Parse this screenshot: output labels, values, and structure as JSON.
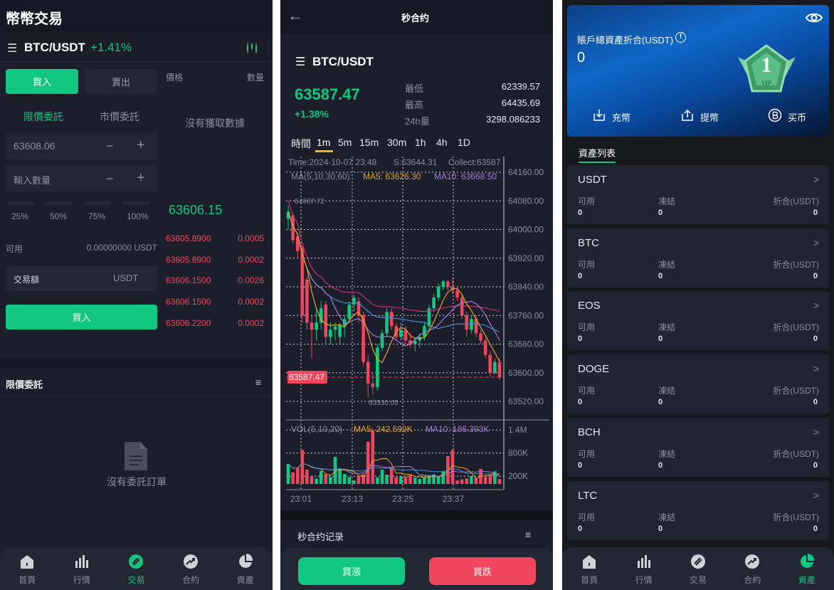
{
  "colors": {
    "green": "#12c77f",
    "red": "#f0465d",
    "bg": "#1c1f2b",
    "ma5": "#e5a323",
    "ma10": "#a77ad8",
    "ma30": "#3d8fd6",
    "ma60": "#c2336f"
  },
  "spot": {
    "title": "幣幣交易",
    "pair": "BTC/USDT",
    "change": "+1.41%",
    "buy_tab": "買入",
    "sell_tab": "賣出",
    "limit_tab": "限價委託",
    "market_tab": "市價委託",
    "price_value": "63608.06",
    "qty_placeholder": "輸入數量",
    "minus": "−",
    "plus": "+",
    "percents": [
      "25%",
      "50%",
      "75%",
      "100%"
    ],
    "available_label": "可用",
    "available_value": "0.00000000 USDT",
    "amount_label": "交易額",
    "amount_unit": "USDT",
    "buy_button": "買入",
    "book_price_header": "價格",
    "book_qty_header": "數量",
    "no_data": "沒有獲取數據",
    "last_price": "63606.15",
    "book": [
      {
        "price": "63605.8900",
        "qty": "0.0005"
      },
      {
        "price": "63605.8900",
        "qty": "0.0002"
      },
      {
        "price": "63606.1500",
        "qty": "0.0026"
      },
      {
        "price": "63606.1500",
        "qty": "0.0002"
      },
      {
        "price": "63606.2200",
        "qty": "0.0002"
      }
    ],
    "orders_title": "限價委託",
    "no_orders": "沒有委託訂單"
  },
  "nav": [
    {
      "label": "首頁",
      "icon": "home-icon"
    },
    {
      "label": "行情",
      "icon": "bar-chart-icon"
    },
    {
      "label": "交易",
      "icon": "trade-icon"
    },
    {
      "label": "合約",
      "icon": "contract-icon"
    },
    {
      "label": "資產",
      "icon": "pie-chart-icon"
    }
  ],
  "contract": {
    "title": "秒合约",
    "pair": "BTC/USDT",
    "price": "63587.47",
    "change": "+1.38%",
    "stats": [
      {
        "label": "最低",
        "value": "62339.57"
      },
      {
        "label": "最高",
        "value": "64435.69"
      },
      {
        "label": "24h量",
        "value": "3298.086233"
      }
    ],
    "timeframes": [
      "時間",
      "1m",
      "5m",
      "15m",
      "30m",
      "1h",
      "4h",
      "1D"
    ],
    "active_timeframe": "1m",
    "info_time": "Time:2024-10-07 23:48",
    "info_s": "S:63644.31",
    "info_collect": "Collect:63587",
    "ma_label": "MA(5,10,30,60)",
    "ma5_label": "MA5: 63626.30",
    "ma10_label": "MA10: 63668.50",
    "high_mark": "64067.72",
    "low_mark": "63530.05",
    "vol_label": "VOL(5,10,20)",
    "vol_ma5": "MA5: 242.599K",
    "vol_ma10": "MA10: 186.393K",
    "records_title": "秒合约记录",
    "buy_up": "買漲",
    "buy_down": "買跌"
  },
  "chart_data": {
    "type": "candlestick",
    "price_axis": [
      "64160.00",
      "64080.00",
      "64000.00",
      "63920.00",
      "63840.00",
      "63760.00",
      "63680.00",
      "63600.00",
      "63520.00"
    ],
    "price_ticks": [
      64160,
      64080,
      64000,
      63920,
      63840,
      63760,
      63680,
      63600,
      63520
    ],
    "ylim": [
      63520,
      64160
    ],
    "current_price": 63587.47,
    "current_label": "63587.47",
    "vol_axis": [
      "1.4M",
      "800K",
      "200K"
    ],
    "vol_ticks": [
      1400,
      800,
      200
    ],
    "time_axis": [
      "23:01",
      "23:13",
      "23:25",
      "23:37"
    ],
    "candles": [
      [
        64030,
        64067,
        64000,
        64050
      ],
      [
        64040,
        64045,
        63960,
        63970
      ],
      [
        63980,
        63990,
        63920,
        63940
      ],
      [
        63950,
        63960,
        63740,
        63760
      ],
      [
        63860,
        63870,
        63720,
        63740
      ],
      [
        63740,
        63760,
        63640,
        63720
      ],
      [
        63720,
        63780,
        63690,
        63740
      ],
      [
        63740,
        63800,
        63720,
        63780
      ],
      [
        63790,
        63800,
        63680,
        63700
      ],
      [
        63700,
        63740,
        63680,
        63720
      ],
      [
        63720,
        63740,
        63690,
        63730
      ],
      [
        63700,
        63740,
        63680,
        63735
      ],
      [
        63730,
        63760,
        63700,
        63750
      ],
      [
        63750,
        63800,
        63740,
        63790
      ],
      [
        63790,
        63820,
        63770,
        63810
      ],
      [
        63800,
        63810,
        63740,
        63760
      ],
      [
        63760,
        63770,
        63620,
        63630
      ],
      [
        63630,
        63650,
        63530,
        63570
      ],
      [
        63570,
        63600,
        63540,
        63560
      ],
      [
        63560,
        63680,
        63550,
        63670
      ],
      [
        63670,
        63720,
        63660,
        63710
      ],
      [
        63710,
        63780,
        63700,
        63770
      ],
      [
        63770,
        63780,
        63720,
        63730
      ],
      [
        63730,
        63740,
        63690,
        63700
      ],
      [
        63700,
        63740,
        63690,
        63720
      ],
      [
        63720,
        63730,
        63680,
        63690
      ],
      [
        63690,
        63710,
        63670,
        63680
      ],
      [
        63680,
        63700,
        63660,
        63690
      ],
      [
        63690,
        63710,
        63670,
        63700
      ],
      [
        63700,
        63740,
        63690,
        63730
      ],
      [
        63730,
        63790,
        63720,
        63780
      ],
      [
        63780,
        63820,
        63770,
        63810
      ],
      [
        63810,
        63850,
        63800,
        63840
      ],
      [
        63840,
        63860,
        63830,
        63855
      ],
      [
        63855,
        63860,
        63830,
        63840
      ],
      [
        63840,
        63865,
        63820,
        63830
      ],
      [
        63830,
        63840,
        63800,
        63810
      ],
      [
        63810,
        63820,
        63750,
        63760
      ],
      [
        63760,
        63770,
        63700,
        63720
      ],
      [
        63720,
        63760,
        63710,
        63750
      ],
      [
        63750,
        63760,
        63700,
        63710
      ],
      [
        63710,
        63720,
        63680,
        63690
      ],
      [
        63690,
        63700,
        63640,
        63650
      ],
      [
        63650,
        63660,
        63590,
        63600
      ],
      [
        63600,
        63640,
        63595,
        63630
      ],
      [
        63630,
        63640,
        63580,
        63587.47
      ]
    ],
    "volumes_k": [
      520,
      300,
      430,
      880,
      370,
      200,
      140,
      340,
      260,
      180,
      700,
      400,
      260,
      180,
      90,
      200,
      250,
      1100,
      1400,
      170,
      370,
      240,
      430,
      180,
      200,
      190,
      230,
      160,
      130,
      180,
      220,
      250,
      200,
      320,
      720,
      880,
      90,
      120,
      140,
      200,
      160,
      390,
      180,
      220,
      330,
      130
    ]
  },
  "assets": {
    "total_label": "賬戶總資產折合(USDT)",
    "total_value": "0",
    "vip_text": "VIP",
    "vip_level": "1",
    "actions": [
      {
        "label": "充幣",
        "icon": "deposit-icon"
      },
      {
        "label": "提幣",
        "icon": "withdraw-icon"
      },
      {
        "label": "买币",
        "icon": "bitcoin-icon"
      }
    ],
    "list_title": "資產列表",
    "col_available": "可用",
    "col_frozen": "凍結",
    "col_value": "折合(USDT)",
    "items": [
      {
        "coin": "USDT",
        "available": "0",
        "frozen": "0",
        "value": "0"
      },
      {
        "coin": "BTC",
        "available": "0",
        "frozen": "0",
        "value": "0"
      },
      {
        "coin": "EOS",
        "available": "0",
        "frozen": "0",
        "value": "0"
      },
      {
        "coin": "DOGE",
        "available": "0",
        "frozen": "0",
        "value": "0"
      },
      {
        "coin": "BCH",
        "available": "0",
        "frozen": "0",
        "value": "0"
      },
      {
        "coin": "LTC",
        "available": "0",
        "frozen": "0",
        "value": "0"
      }
    ]
  }
}
